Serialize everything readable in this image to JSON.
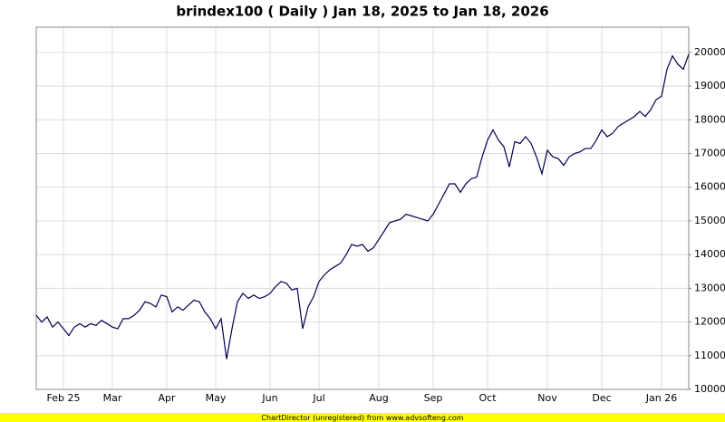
{
  "chart_data": {
    "type": "line",
    "title": "brindex100 ( Daily ) Jan 18, 2025 to Jan 18, 2026",
    "footer": "ChartDirector (unregistered) from www.advsofteng.com",
    "categories": [
      null,
      null,
      null,
      null,
      null,
      "Feb 25",
      null,
      null,
      null,
      null,
      null,
      null,
      null,
      null,
      "Mar",
      null,
      null,
      null,
      null,
      null,
      null,
      null,
      null,
      null,
      "Apr",
      null,
      null,
      null,
      null,
      null,
      null,
      null,
      null,
      "May",
      null,
      null,
      null,
      null,
      null,
      null,
      null,
      null,
      null,
      "Jun",
      null,
      null,
      null,
      null,
      null,
      null,
      null,
      null,
      "Jul",
      null,
      null,
      null,
      null,
      null,
      null,
      null,
      null,
      null,
      null,
      "Aug",
      null,
      null,
      null,
      null,
      null,
      null,
      null,
      null,
      null,
      "Sep",
      null,
      null,
      null,
      null,
      null,
      null,
      null,
      null,
      null,
      "Oct",
      null,
      null,
      null,
      null,
      null,
      null,
      null,
      null,
      null,
      null,
      "Nov",
      null,
      null,
      null,
      null,
      null,
      null,
      null,
      null,
      null,
      "Dec",
      null,
      null,
      null,
      null,
      null,
      null,
      null,
      null,
      null,
      null,
      "Jan 26",
      null,
      null,
      null,
      null,
      null
    ],
    "values": [
      12200,
      12000,
      12150,
      11850,
      12000,
      11800,
      11600,
      11850,
      11950,
      11850,
      11950,
      11900,
      12050,
      11950,
      11850,
      11800,
      12100,
      12100,
      12200,
      12350,
      12600,
      12550,
      12450,
      12800,
      12750,
      12300,
      12450,
      12350,
      12500,
      12650,
      12600,
      12300,
      12100,
      11800,
      12100,
      10900,
      11800,
      12600,
      12850,
      12700,
      12800,
      12700,
      12750,
      12850,
      13050,
      13200,
      13150,
      12950,
      13000,
      11800,
      12450,
      12750,
      13200,
      13400,
      13550,
      13650,
      13750,
      14000,
      14300,
      14250,
      14300,
      14100,
      14200,
      14450,
      14700,
      14950,
      15000,
      15050,
      15200,
      15150,
      15100,
      15050,
      15000,
      15200,
      15500,
      15800,
      16100,
      16100,
      15850,
      16100,
      16250,
      16300,
      16900,
      17400,
      17700,
      17400,
      17200,
      16600,
      17350,
      17300,
      17500,
      17300,
      16900,
      16400,
      17100,
      16900,
      16850,
      16650,
      16900,
      17000,
      17050,
      17150,
      17150,
      17400,
      17700,
      17500,
      17600,
      17800,
      17900,
      18000,
      18100,
      18250,
      18100,
      18300,
      18600,
      18700,
      19500,
      19900,
      19650,
      19500,
      19950
    ],
    "color": "#000050",
    "ylim": [
      10000,
      20750
    ],
    "yticks": [
      10000,
      11000,
      12000,
      13000,
      14000,
      15000,
      16000,
      17000,
      18000,
      19000,
      20000
    ],
    "grid": true
  }
}
